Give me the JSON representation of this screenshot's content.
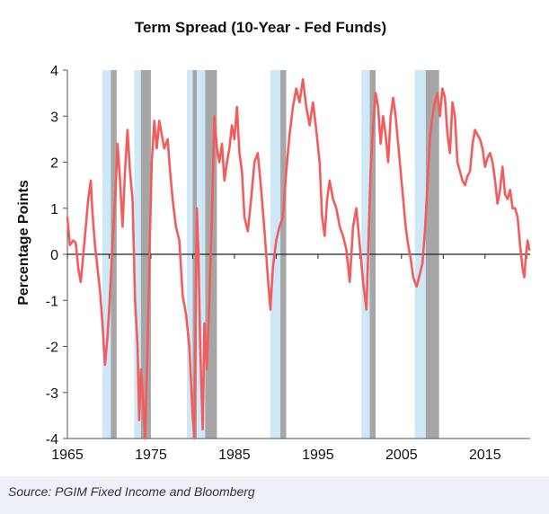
{
  "chart_data": {
    "type": "line",
    "title": "Term Spread (10-Year - Fed Funds)",
    "xlabel": "",
    "ylabel": "Percentage Points",
    "xlim": [
      1965,
      2020.4
    ],
    "ylim": [
      -4,
      4
    ],
    "x_ticks": [
      1965,
      1975,
      1985,
      1995,
      2005,
      2015
    ],
    "y_ticks": [
      4,
      3,
      2,
      1,
      0,
      -1,
      -2,
      -3,
      -4
    ],
    "series": [
      {
        "name": "Term Spread",
        "color": "#f25c5c",
        "points": [
          [
            1965.0,
            0.8
          ],
          [
            1965.3,
            0.2
          ],
          [
            1965.7,
            0.3
          ],
          [
            1966.0,
            0.25
          ],
          [
            1966.3,
            -0.3
          ],
          [
            1966.6,
            -0.6
          ],
          [
            1966.9,
            0.0
          ],
          [
            1967.2,
            0.6
          ],
          [
            1967.5,
            1.2
          ],
          [
            1967.8,
            1.6
          ],
          [
            1968.0,
            0.9
          ],
          [
            1968.3,
            0.2
          ],
          [
            1968.6,
            -0.3
          ],
          [
            1968.9,
            -0.8
          ],
          [
            1969.2,
            -1.5
          ],
          [
            1969.5,
            -2.4
          ],
          [
            1969.8,
            -1.8
          ],
          [
            1970.0,
            -1.2
          ],
          [
            1970.4,
            0.2
          ],
          [
            1970.8,
            1.5
          ],
          [
            1971.0,
            2.4
          ],
          [
            1971.3,
            1.6
          ],
          [
            1971.6,
            0.6
          ],
          [
            1971.9,
            1.8
          ],
          [
            1972.2,
            2.7
          ],
          [
            1972.5,
            1.8
          ],
          [
            1972.8,
            1.2
          ],
          [
            1973.1,
            -1.0
          ],
          [
            1973.4,
            -2.0
          ],
          [
            1973.6,
            -3.6
          ],
          [
            1973.8,
            -2.5
          ],
          [
            1974.0,
            -3.0
          ],
          [
            1974.3,
            -4.0
          ],
          [
            1974.6,
            -2.0
          ],
          [
            1974.9,
            0.5
          ],
          [
            1975.1,
            2.0
          ],
          [
            1975.4,
            2.9
          ],
          [
            1975.7,
            2.3
          ],
          [
            1976.0,
            2.9
          ],
          [
            1976.3,
            2.6
          ],
          [
            1976.6,
            2.3
          ],
          [
            1977.0,
            2.5
          ],
          [
            1977.3,
            1.8
          ],
          [
            1977.6,
            1.2
          ],
          [
            1978.0,
            0.6
          ],
          [
            1978.4,
            0.3
          ],
          [
            1978.8,
            -0.9
          ],
          [
            1979.2,
            -1.3
          ],
          [
            1979.6,
            -2.0
          ],
          [
            1980.0,
            -3.5
          ],
          [
            1980.2,
            -4.0
          ],
          [
            1980.5,
            1.0
          ],
          [
            1980.7,
            0.0
          ],
          [
            1980.9,
            -2.0
          ],
          [
            1981.2,
            -3.8
          ],
          [
            1981.4,
            -1.5
          ],
          [
            1981.7,
            -2.5
          ],
          [
            1982.0,
            -1.0
          ],
          [
            1982.3,
            0.8
          ],
          [
            1982.6,
            3.0
          ],
          [
            1982.9,
            2.3
          ],
          [
            1983.2,
            2.0
          ],
          [
            1983.5,
            2.4
          ],
          [
            1983.8,
            1.6
          ],
          [
            1984.1,
            2.0
          ],
          [
            1984.4,
            2.3
          ],
          [
            1984.7,
            2.8
          ],
          [
            1985.0,
            2.5
          ],
          [
            1985.3,
            3.2
          ],
          [
            1985.6,
            2.2
          ],
          [
            1985.9,
            1.8
          ],
          [
            1986.2,
            0.8
          ],
          [
            1986.6,
            0.5
          ],
          [
            1987.0,
            1.2
          ],
          [
            1987.4,
            2.0
          ],
          [
            1987.8,
            2.2
          ],
          [
            1988.2,
            1.4
          ],
          [
            1988.6,
            0.5
          ],
          [
            1989.0,
            -0.5
          ],
          [
            1989.3,
            -1.2
          ],
          [
            1989.6,
            -0.3
          ],
          [
            1990.0,
            0.3
          ],
          [
            1990.4,
            0.6
          ],
          [
            1990.8,
            0.8
          ],
          [
            1991.2,
            1.8
          ],
          [
            1991.6,
            2.6
          ],
          [
            1992.0,
            3.2
          ],
          [
            1992.4,
            3.6
          ],
          [
            1992.8,
            3.3
          ],
          [
            1993.2,
            3.8
          ],
          [
            1993.6,
            3.2
          ],
          [
            1994.0,
            2.8
          ],
          [
            1994.4,
            3.3
          ],
          [
            1994.8,
            2.7
          ],
          [
            1995.2,
            2.0
          ],
          [
            1995.5,
            0.8
          ],
          [
            1995.8,
            0.4
          ],
          [
            1996.1,
            1.2
          ],
          [
            1996.4,
            1.6
          ],
          [
            1996.8,
            1.2
          ],
          [
            1997.2,
            1.0
          ],
          [
            1997.6,
            0.6
          ],
          [
            1998.0,
            0.4
          ],
          [
            1998.4,
            0.1
          ],
          [
            1998.8,
            -0.6
          ],
          [
            1999.2,
            0.6
          ],
          [
            1999.6,
            1.0
          ],
          [
            2000.0,
            0.2
          ],
          [
            2000.4,
            -0.6
          ],
          [
            2000.8,
            -1.2
          ],
          [
            2001.0,
            0.0
          ],
          [
            2001.3,
            1.8
          ],
          [
            2001.6,
            2.8
          ],
          [
            2001.9,
            3.5
          ],
          [
            2002.2,
            3.2
          ],
          [
            2002.5,
            2.4
          ],
          [
            2002.8,
            3.0
          ],
          [
            2003.1,
            2.6
          ],
          [
            2003.4,
            2.0
          ],
          [
            2003.7,
            3.0
          ],
          [
            2004.0,
            3.4
          ],
          [
            2004.3,
            3.0
          ],
          [
            2004.6,
            2.4
          ],
          [
            2004.9,
            1.8
          ],
          [
            2005.2,
            1.2
          ],
          [
            2005.5,
            0.6
          ],
          [
            2005.8,
            0.2
          ],
          [
            2006.1,
            -0.1
          ],
          [
            2006.4,
            -0.5
          ],
          [
            2006.8,
            -0.7
          ],
          [
            2007.1,
            -0.5
          ],
          [
            2007.5,
            -0.2
          ],
          [
            2007.8,
            0.5
          ],
          [
            2008.1,
            1.5
          ],
          [
            2008.4,
            2.5
          ],
          [
            2008.7,
            3.0
          ],
          [
            2009.0,
            3.3
          ],
          [
            2009.3,
            3.5
          ],
          [
            2009.6,
            3.0
          ],
          [
            2009.9,
            3.6
          ],
          [
            2010.2,
            3.4
          ],
          [
            2010.5,
            2.6
          ],
          [
            2010.8,
            2.2
          ],
          [
            2011.1,
            3.3
          ],
          [
            2011.4,
            3.0
          ],
          [
            2011.7,
            2.0
          ],
          [
            2012.0,
            1.8
          ],
          [
            2012.3,
            1.6
          ],
          [
            2012.6,
            1.5
          ],
          [
            2012.9,
            1.7
          ],
          [
            2013.2,
            1.8
          ],
          [
            2013.5,
            2.4
          ],
          [
            2013.8,
            2.7
          ],
          [
            2014.1,
            2.6
          ],
          [
            2014.4,
            2.5
          ],
          [
            2014.7,
            2.3
          ],
          [
            2015.0,
            1.9
          ],
          [
            2015.3,
            2.1
          ],
          [
            2015.6,
            2.2
          ],
          [
            2015.9,
            2.0
          ],
          [
            2016.2,
            1.6
          ],
          [
            2016.5,
            1.1
          ],
          [
            2016.8,
            1.4
          ],
          [
            2017.1,
            1.9
          ],
          [
            2017.4,
            1.3
          ],
          [
            2017.7,
            1.2
          ],
          [
            2018.0,
            1.4
          ],
          [
            2018.3,
            1.0
          ],
          [
            2018.6,
            1.0
          ],
          [
            2018.9,
            0.8
          ],
          [
            2019.2,
            0.2
          ],
          [
            2019.5,
            -0.3
          ],
          [
            2019.7,
            -0.5
          ],
          [
            2019.9,
            0.0
          ],
          [
            2020.1,
            0.3
          ],
          [
            2020.3,
            0.1
          ]
        ]
      }
    ],
    "shaded_periods": [
      {
        "start": 1969.2,
        "end": 1970.2,
        "shade": "light-blue"
      },
      {
        "start": 1970.2,
        "end": 1970.9,
        "shade": "gray"
      },
      {
        "start": 1973.0,
        "end": 1973.8,
        "shade": "light-blue"
      },
      {
        "start": 1973.8,
        "end": 1975.0,
        "shade": "gray"
      },
      {
        "start": 1979.3,
        "end": 1980.0,
        "shade": "light-blue"
      },
      {
        "start": 1980.0,
        "end": 1980.5,
        "shade": "gray"
      },
      {
        "start": 1980.5,
        "end": 1981.5,
        "shade": "light-blue"
      },
      {
        "start": 1981.5,
        "end": 1982.9,
        "shade": "gray"
      },
      {
        "start": 1989.3,
        "end": 1990.5,
        "shade": "light-blue"
      },
      {
        "start": 1990.5,
        "end": 1991.2,
        "shade": "gray"
      },
      {
        "start": 2000.2,
        "end": 2001.2,
        "shade": "light-blue"
      },
      {
        "start": 2001.2,
        "end": 2001.9,
        "shade": "gray"
      },
      {
        "start": 2006.6,
        "end": 2007.9,
        "shade": "light-blue"
      },
      {
        "start": 2007.9,
        "end": 2009.5,
        "shade": "gray"
      }
    ],
    "colors": {
      "line": "#f25c5c",
      "light-blue": "#cfe8f7",
      "gray": "#a6a6a6",
      "axis": "#555555"
    },
    "grid": false,
    "legend": "none"
  },
  "footer": {
    "source": "Source: PGIM Fixed Income and Bloomberg"
  }
}
